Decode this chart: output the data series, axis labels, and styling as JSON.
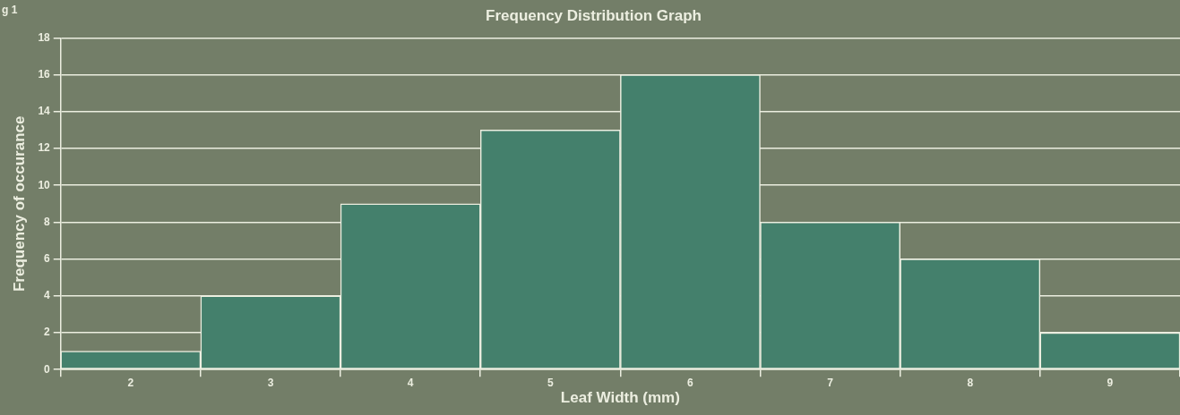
{
  "chart_data": {
    "type": "bar",
    "title": "Frequency Distribution Graph",
    "xlabel": "Leaf Width (mm)",
    "ylabel": "Frequency of occurance",
    "annotations": [
      "g 1"
    ],
    "categories": [
      "2",
      "3",
      "4",
      "5",
      "6",
      "7",
      "8",
      "9"
    ],
    "values": [
      1,
      4,
      9,
      13,
      16,
      8,
      6,
      2
    ],
    "color": "#44806c",
    "ylim": [
      0,
      18
    ],
    "yticks": [
      0,
      2,
      4,
      6,
      8,
      10,
      12,
      14,
      16,
      18
    ],
    "grid": "y",
    "legend": false
  }
}
